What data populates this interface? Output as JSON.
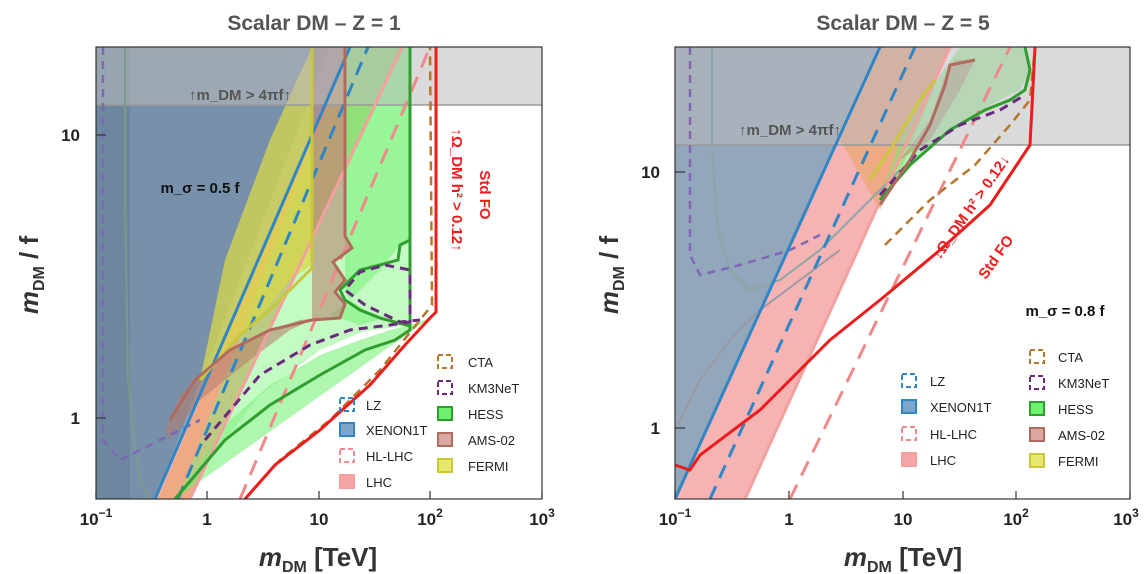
{
  "chart_data": [
    {
      "type": "area",
      "title": "Scalar DM  –  Z = 1",
      "xlabel": "m_DM  [TeV]",
      "ylabel": "m_DM / f",
      "xscale": "log",
      "yscale": "log",
      "xlim": [
        0.1,
        1000
      ],
      "ylim": [
        0.55,
        20
      ],
      "xticks": [
        "10^-1",
        "1",
        "10",
        "10^2",
        "10^3"
      ],
      "yticks": [
        "1",
        "10"
      ],
      "annotations": {
        "perturbativity": "↑m_DM > 4πf↑",
        "mass_ratio": "m_σ = 0.5 f",
        "std_fo": "Std FO",
        "relic": "↑Ω_DM h² > 0.12↑"
      },
      "legend": [
        "CTA",
        "KM3NeT",
        "HESS",
        "AMS-02",
        "FERMI",
        "LZ",
        "XENON1T",
        "HL-LHC",
        "LHC"
      ],
      "series": [
        {
          "name": "XENON1T",
          "x": [
            0.41,
            19
          ],
          "y": [
            0.55,
            20
          ]
        },
        {
          "name": "LZ",
          "x": [
            0.58,
            28
          ],
          "y": [
            0.55,
            20
          ]
        },
        {
          "name": "LHC",
          "x": [
            0.82,
            40
          ],
          "y": [
            0.55,
            20
          ]
        },
        {
          "name": "HL-LHC",
          "x": [
            1.35,
            65
          ],
          "y": [
            0.55,
            20
          ]
        },
        {
          "name": "HESS",
          "x": [
            1.5,
            6,
            20,
            35,
            55,
            70,
            70,
            55,
            40,
            35,
            30,
            40,
            70,
            70
          ],
          "y": [
            0.6,
            1.0,
            1.5,
            1.9,
            2.1,
            2.2,
            2.5,
            2.8,
            2.9,
            3.2,
            3.5,
            3.8,
            4.2,
            20
          ]
        },
        {
          "name": "AMS-02",
          "x": [
            21,
            21,
            28,
            20,
            25,
            20,
            21,
            15,
            10,
            5,
            2,
            1
          ],
          "y": [
            20,
            5.6,
            4.5,
            3.4,
            3.0,
            2.4,
            2.2,
            2.0,
            1.8,
            1.5,
            1.3,
            1.0
          ]
        },
        {
          "name": "FERMI",
          "x": [
            10,
            10,
            4,
            2,
            1.2
          ],
          "y": [
            20,
            2.5,
            1.6,
            1.2,
            0.9
          ]
        },
        {
          "name": "KM3NeT",
          "x": [
            10,
            30,
            60,
            90,
            100,
            100,
            120
          ],
          "y": [
            1.6,
            1.9,
            2.1,
            2.2,
            2.3,
            3.3,
            20
          ]
        },
        {
          "name": "CTA",
          "x": [
            4,
            10,
            30,
            80,
            100,
            95
          ],
          "y": [
            0.6,
            0.8,
            1.2,
            1.6,
            1.8,
            20
          ]
        },
        {
          "name": "Std FO",
          "x": [
            2.8,
            5,
            10,
            20,
            40,
            80,
            120,
            120
          ],
          "y": [
            0.55,
            0.75,
            1.0,
            1.4,
            1.8,
            2.2,
            2.5,
            20
          ]
        }
      ]
    },
    {
      "type": "area",
      "title": "Scalar DM  –  Z = 5",
      "xlabel": "m_DM  [TeV]",
      "ylabel": "m_DM / f",
      "xscale": "log",
      "yscale": "log",
      "xlim": [
        0.1,
        1000
      ],
      "ylim": [
        0.55,
        30
      ],
      "xticks": [
        "10^-1",
        "1",
        "10",
        "10^2",
        "10^3"
      ],
      "yticks": [
        "1",
        "10"
      ],
      "annotations": {
        "perturbativity": "↑m_DM > 4πf↑",
        "mass_ratio": "m_σ = 0.8 f",
        "std_fo": "Std FO",
        "relic": "↓Ω_DM h² > 0.12↓"
      },
      "legend": [
        "LZ",
        "XENON1T",
        "HL-LHC",
        "LHC",
        "CTA",
        "KM3NeT",
        "HESS",
        "AMS-02",
        "FERMI"
      ],
      "series": [
        {
          "name": "XENON1T",
          "x": [
            0.13,
            10
          ],
          "y": [
            0.55,
            30
          ]
        },
        {
          "name": "LZ",
          "x": [
            0.2,
            15
          ],
          "y": [
            0.55,
            30
          ]
        },
        {
          "name": "LHC",
          "x": [
            0.45,
            30
          ],
          "y": [
            0.55,
            30
          ]
        },
        {
          "name": "HL-LHC",
          "x": [
            1.0,
            70
          ],
          "y": [
            0.55,
            30
          ]
        },
        {
          "name": "HESS",
          "x": [
            1.8,
            5,
            10,
            20,
            40,
            60,
            70,
            60,
            55,
            70,
            75,
            60
          ],
          "y": [
            3.3,
            4.5,
            7,
            10,
            15,
            19,
            23,
            25,
            27,
            29,
            30,
            28
          ]
        },
        {
          "name": "Std FO",
          "x": [
            0.1,
            0.15,
            0.5,
            2,
            10,
            50,
            120,
            120
          ],
          "y": [
            0.65,
            0.7,
            1.3,
            2.8,
            5.5,
            12,
            18,
            30
          ]
        }
      ]
    }
  ]
}
